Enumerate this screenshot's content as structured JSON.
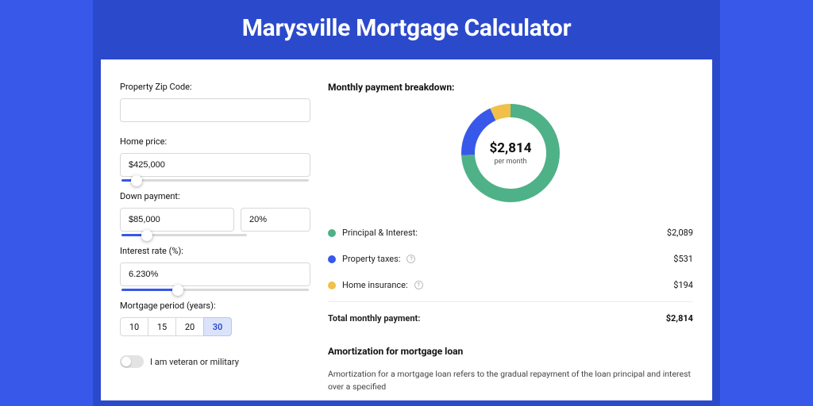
{
  "colors": {
    "page_bg": "#3858e9",
    "band_bg": "#2b4acb",
    "card_bg": "#ffffff"
  },
  "title": "Marysville Mortgage Calculator",
  "form": {
    "zip_label": "Property Zip Code:",
    "zip_value": "",
    "price_label": "Home price:",
    "price_value": "$425,000",
    "price_slider_pct": 8,
    "down_label": "Down payment:",
    "down_value": "$85,000",
    "down_pct_value": "20%",
    "down_slider_pct": 20,
    "rate_label": "Interest rate (%):",
    "rate_value": "6.230%",
    "rate_slider_pct": 30,
    "period_label": "Mortgage period (years):",
    "periods": [
      {
        "label": "10",
        "selected": false
      },
      {
        "label": "15",
        "selected": false
      },
      {
        "label": "20",
        "selected": false
      },
      {
        "label": "30",
        "selected": true
      }
    ],
    "veteran_label": "I am veteran or military",
    "veteran_on": false
  },
  "breakdown": {
    "heading": "Monthly payment breakdown:",
    "total_amount": "$2,814",
    "total_sub": "per month",
    "donut": {
      "radius": 62,
      "thickness": 17,
      "slices": [
        {
          "key": "principal_interest",
          "fraction": 0.742,
          "color": "#4fb187"
        },
        {
          "key": "property_taxes",
          "fraction": 0.189,
          "color": "#3858e9"
        },
        {
          "key": "home_insurance",
          "fraction": 0.069,
          "color": "#f0c04a"
        }
      ]
    },
    "rows": [
      {
        "key": "principal_interest",
        "label": "Principal & Interest:",
        "value": "$2,089",
        "color": "#4fb187",
        "help": false
      },
      {
        "key": "property_taxes",
        "label": "Property taxes:",
        "value": "$531",
        "color": "#3858e9",
        "help": true
      },
      {
        "key": "home_insurance",
        "label": "Home insurance:",
        "value": "$194",
        "color": "#f0c04a",
        "help": true
      }
    ],
    "total_row": {
      "label": "Total monthly payment:",
      "value": "$2,814"
    }
  },
  "amortization": {
    "heading": "Amortization for mortgage loan",
    "desc": "Amortization for a mortgage loan refers to the gradual repayment of the loan principal and interest over a specified"
  }
}
